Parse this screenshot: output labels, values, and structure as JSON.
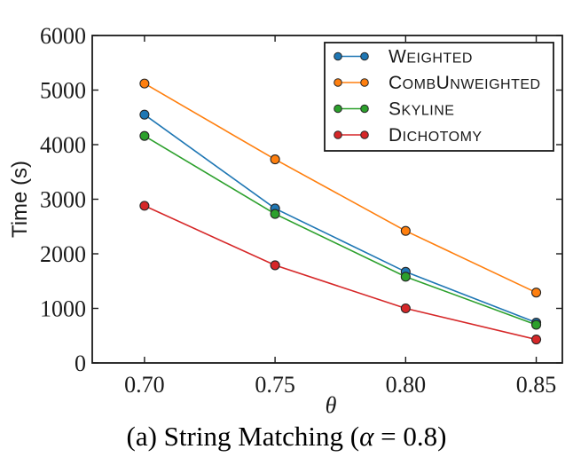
{
  "figure": {
    "caption": {
      "prefix": "(a) String Matching (",
      "alpha": "α",
      "suffix": " = 0.8)"
    }
  },
  "chart_data": {
    "type": "line",
    "title": "",
    "xlabel": "θ",
    "ylabel": "Time (s)",
    "x": [
      0.7,
      0.75,
      0.8,
      0.85
    ],
    "xtick_labels": [
      "0.70",
      "0.75",
      "0.80",
      "0.85"
    ],
    "yticks": [
      0,
      1000,
      2000,
      3000,
      4000,
      5000,
      6000
    ],
    "xlim": [
      0.68,
      0.86
    ],
    "ylim": [
      0,
      6000
    ],
    "grid": false,
    "tick_direction": "in",
    "legend_position": "upper right",
    "axis_color": "#1a1a1a",
    "marker_edge_color": "#262626",
    "background_color": "#ffffff",
    "series": [
      {
        "name": "Weighted",
        "color": "#1f77b4",
        "marker": "circle",
        "values": [
          4550,
          2830,
          1670,
          740
        ]
      },
      {
        "name": "CombUnweighted",
        "color": "#ff7f0e",
        "marker": "circle",
        "values": [
          5120,
          3730,
          2420,
          1290
        ]
      },
      {
        "name": "Skyline",
        "color": "#2ca02c",
        "marker": "circle",
        "values": [
          4160,
          2730,
          1580,
          700
        ]
      },
      {
        "name": "Dichotomy",
        "color": "#d62728",
        "marker": "circle",
        "values": [
          2880,
          1790,
          1000,
          430
        ]
      }
    ]
  }
}
